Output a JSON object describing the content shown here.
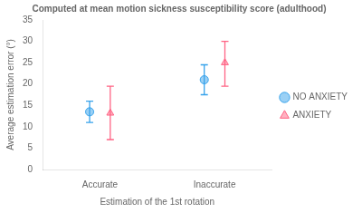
{
  "chart_data": {
    "type": "errorbar",
    "title": "Computed at mean motion sickness susceptibility score (adulthood)",
    "xlabel": "Estimation of the 1st rotation",
    "ylabel": "Average estimation error (°)",
    "categories": [
      "Accurate",
      "Inaccurate"
    ],
    "series": [
      {
        "name": "NO ANXIETY",
        "marker": "circle",
        "values": [
          13.5,
          21.0
        ],
        "ci_low": [
          11.0,
          17.5
        ],
        "ci_high": [
          16.0,
          24.5
        ]
      },
      {
        "name": "ANXIETY",
        "marker": "triangle",
        "values": [
          13.2,
          25.0
        ],
        "ci_low": [
          7.0,
          19.5
        ],
        "ci_high": [
          19.5,
          30.0
        ]
      }
    ],
    "ylim": [
      0,
      35
    ],
    "yticks": [
      0,
      5,
      10,
      15,
      20,
      25,
      30,
      35
    ],
    "grid": false,
    "legend": "right"
  }
}
